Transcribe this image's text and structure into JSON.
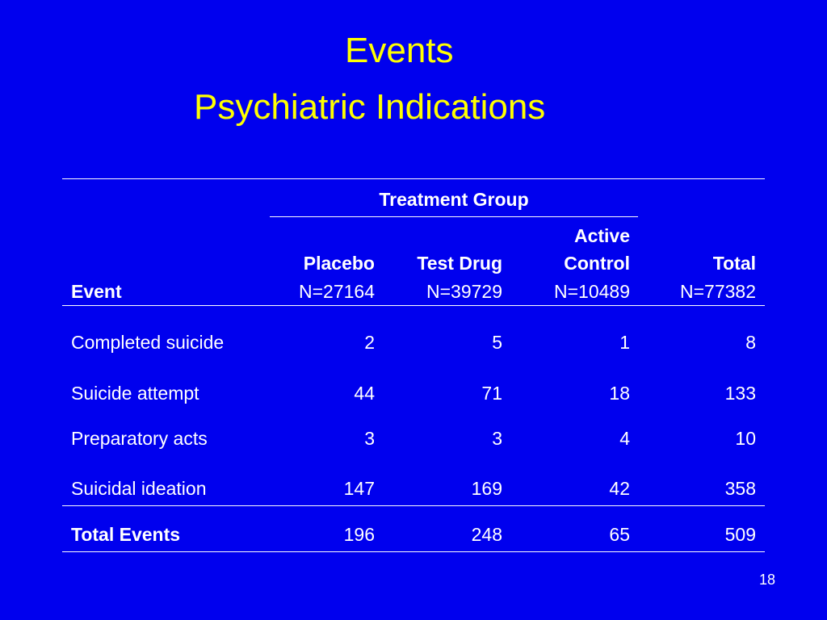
{
  "slide": {
    "title_line1": "Events",
    "title_line2": "Psychiatric Indications",
    "page_number": "18",
    "colors": {
      "background": "#0000ee",
      "title": "#ffff00",
      "text": "#ffffff"
    }
  },
  "table": {
    "group_header": "Treatment Group",
    "columns": {
      "event": {
        "label": "Event"
      },
      "placebo": {
        "label": "Placebo",
        "n": "N=27164"
      },
      "test_drug": {
        "label": "Test Drug",
        "n": "N=39729"
      },
      "active_control": {
        "label_line1": "Active",
        "label_line2": "Control",
        "n": "N=10489"
      },
      "total": {
        "label": "Total",
        "n": "N=77382"
      }
    },
    "rows": [
      {
        "event": "Completed suicide",
        "placebo": "2",
        "test_drug": "5",
        "active_control": "1",
        "total": "8"
      },
      {
        "event": "Suicide attempt",
        "placebo": "44",
        "test_drug": "71",
        "active_control": "18",
        "total": "133"
      },
      {
        "event": "Preparatory acts",
        "placebo": "3",
        "test_drug": "3",
        "active_control": "4",
        "total": "10"
      },
      {
        "event": "Suicidal ideation",
        "placebo": "147",
        "test_drug": "169",
        "active_control": "42",
        "total": "358"
      }
    ],
    "total_row": {
      "event": "Total Events",
      "placebo": "196",
      "test_drug": "248",
      "active_control": "65",
      "total": "509"
    }
  }
}
